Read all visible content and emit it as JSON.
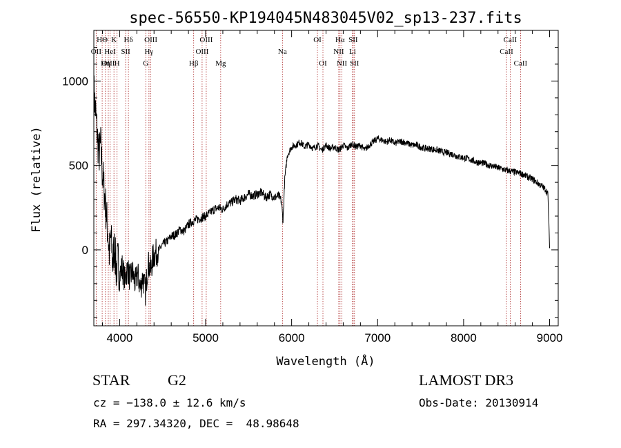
{
  "chart_data": {
    "type": "line",
    "title": "spec-56550-KP194045N483045V02_sp13-237.fits",
    "xlabel": "Wavelength (Å)",
    "ylabel": "Flux (relative)",
    "xlim": [
      3700,
      9100
    ],
    "ylim": [
      -450,
      1300
    ],
    "xticks": [
      4000,
      5000,
      6000,
      7000,
      8000,
      9000
    ],
    "yticks": [
      0,
      500,
      1000
    ],
    "xtick_labels": [
      "4000",
      "5000",
      "6000",
      "7000",
      "8000",
      "9000"
    ],
    "ytick_labels": [
      "0",
      "500",
      "1000"
    ],
    "grid": false,
    "line_color": "#000000",
    "marker_line_color": "#aa2222",
    "spectrum_points": [
      [
        3700,
        940
      ],
      [
        3720,
        820
      ],
      [
        3740,
        680
      ],
      [
        3760,
        560
      ],
      [
        3780,
        620
      ],
      [
        3800,
        450
      ],
      [
        3820,
        350
      ],
      [
        3840,
        240
      ],
      [
        3860,
        120
      ],
      [
        3880,
        -20
      ],
      [
        3900,
        80
      ],
      [
        3920,
        -90
      ],
      [
        3940,
        30
      ],
      [
        3960,
        -120
      ],
      [
        3980,
        -60
      ],
      [
        4000,
        -150
      ],
      [
        4030,
        -100
      ],
      [
        4060,
        -180
      ],
      [
        4090,
        -110
      ],
      [
        4120,
        -170
      ],
      [
        4150,
        -130
      ],
      [
        4180,
        -200
      ],
      [
        4210,
        -140
      ],
      [
        4240,
        -230
      ],
      [
        4270,
        -160
      ],
      [
        4300,
        -250
      ],
      [
        4330,
        -80
      ],
      [
        4360,
        -120
      ],
      [
        4390,
        -40
      ],
      [
        4420,
        -20
      ],
      [
        4460,
        0
      ],
      [
        4500,
        30
      ],
      [
        4550,
        50
      ],
      [
        4600,
        80
      ],
      [
        4650,
        90
      ],
      [
        4700,
        120
      ],
      [
        4750,
        110
      ],
      [
        4800,
        150
      ],
      [
        4850,
        170
      ],
      [
        4900,
        180
      ],
      [
        4950,
        190
      ],
      [
        5000,
        200
      ],
      [
        5050,
        220
      ],
      [
        5100,
        240
      ],
      [
        5150,
        250
      ],
      [
        5200,
        240
      ],
      [
        5250,
        270
      ],
      [
        5300,
        280
      ],
      [
        5350,
        300
      ],
      [
        5400,
        290
      ],
      [
        5450,
        310
      ],
      [
        5500,
        330
      ],
      [
        5550,
        320
      ],
      [
        5600,
        330
      ],
      [
        5650,
        340
      ],
      [
        5700,
        310
      ],
      [
        5750,
        330
      ],
      [
        5800,
        310
      ],
      [
        5850,
        320
      ],
      [
        5880,
        290
      ],
      [
        5900,
        170
      ],
      [
        5920,
        420
      ],
      [
        5950,
        560
      ],
      [
        6000,
        610
      ],
      [
        6050,
        620
      ],
      [
        6100,
        640
      ],
      [
        6150,
        610
      ],
      [
        6200,
        625
      ],
      [
        6250,
        600
      ],
      [
        6300,
        620
      ],
      [
        6350,
        590
      ],
      [
        6400,
        620
      ],
      [
        6450,
        600
      ],
      [
        6500,
        610
      ],
      [
        6550,
        590
      ],
      [
        6600,
        620
      ],
      [
        6650,
        600
      ],
      [
        6700,
        630
      ],
      [
        6750,
        610
      ],
      [
        6800,
        620
      ],
      [
        6850,
        590
      ],
      [
        6900,
        620
      ],
      [
        6950,
        640
      ],
      [
        7000,
        660
      ],
      [
        7050,
        650
      ],
      [
        7100,
        640
      ],
      [
        7150,
        650
      ],
      [
        7200,
        630
      ],
      [
        7250,
        640
      ],
      [
        7300,
        640
      ],
      [
        7350,
        630
      ],
      [
        7400,
        620
      ],
      [
        7450,
        620
      ],
      [
        7500,
        610
      ],
      [
        7550,
        600
      ],
      [
        7600,
        600
      ],
      [
        7650,
        595
      ],
      [
        7700,
        590
      ],
      [
        7750,
        580
      ],
      [
        7800,
        575
      ],
      [
        7850,
        570
      ],
      [
        7900,
        560
      ],
      [
        7950,
        550
      ],
      [
        8000,
        545
      ],
      [
        8050,
        540
      ],
      [
        8100,
        530
      ],
      [
        8150,
        520
      ],
      [
        8200,
        515
      ],
      [
        8250,
        510
      ],
      [
        8300,
        500
      ],
      [
        8350,
        495
      ],
      [
        8400,
        485
      ],
      [
        8450,
        480
      ],
      [
        8500,
        470
      ],
      [
        8550,
        465
      ],
      [
        8600,
        460
      ],
      [
        8650,
        455
      ],
      [
        8700,
        445
      ],
      [
        8750,
        430
      ],
      [
        8800,
        420
      ],
      [
        8850,
        400
      ],
      [
        8900,
        380
      ],
      [
        8950,
        360
      ],
      [
        8980,
        330
      ],
      [
        9000,
        10
      ]
    ],
    "lines": [
      {
        "label": "HΘ",
        "x": 3797,
        "row": 0
      },
      {
        "label": "OII",
        "x": 3727,
        "row": 1
      },
      {
        "label": "OIII",
        "x": 3868,
        "row": 2
      },
      {
        "label": "K",
        "x": 3934,
        "row": 0
      },
      {
        "label": "HeI",
        "x": 3889,
        "row": 1
      },
      {
        "label": "Hη",
        "x": 3835,
        "row": 2
      },
      {
        "label": "SII",
        "x": 4070,
        "row": 1
      },
      {
        "label": "H",
        "x": 3970,
        "row": 2
      },
      {
        "label": "Hδ",
        "x": 4102,
        "row": 0
      },
      {
        "label": "OIII",
        "x": 4363,
        "row": 0
      },
      {
        "label": "Hγ",
        "x": 4341,
        "row": 1
      },
      {
        "label": "G",
        "x": 4304,
        "row": 2
      },
      {
        "label": "OIII",
        "x": 5007,
        "row": 0
      },
      {
        "label": "OIII",
        "x": 4959,
        "row": 1
      },
      {
        "label": "Hβ",
        "x": 4861,
        "row": 2
      },
      {
        "label": "Mg",
        "x": 5175,
        "row": 2
      },
      {
        "label": "Na",
        "x": 5893,
        "row": 1
      },
      {
        "label": "OI",
        "x": 6300,
        "row": 0
      },
      {
        "label": "OI",
        "x": 6364,
        "row": 2
      },
      {
        "label": "Hα",
        "x": 6563,
        "row": 0
      },
      {
        "label": "SII",
        "x": 6716,
        "row": 0
      },
      {
        "label": "NII",
        "x": 6548,
        "row": 1
      },
      {
        "label": "Li",
        "x": 6708,
        "row": 1
      },
      {
        "label": "NII",
        "x": 6584,
        "row": 2
      },
      {
        "label": "SII",
        "x": 6731,
        "row": 2
      },
      {
        "label": "CaII",
        "x": 8542,
        "row": 0
      },
      {
        "label": "CaII",
        "x": 8498,
        "row": 1
      },
      {
        "label": "CaII",
        "x": 8662,
        "row": 2
      }
    ]
  },
  "info": {
    "class_label": "STAR",
    "subclass_label": "G2",
    "survey": "LAMOST DR3",
    "cz": "cz = −138.0 ± 12.6 km/s",
    "obs_date": "Obs-Date: 20130914",
    "coords": "RA = 297.34320, DEC =  48.98648"
  }
}
